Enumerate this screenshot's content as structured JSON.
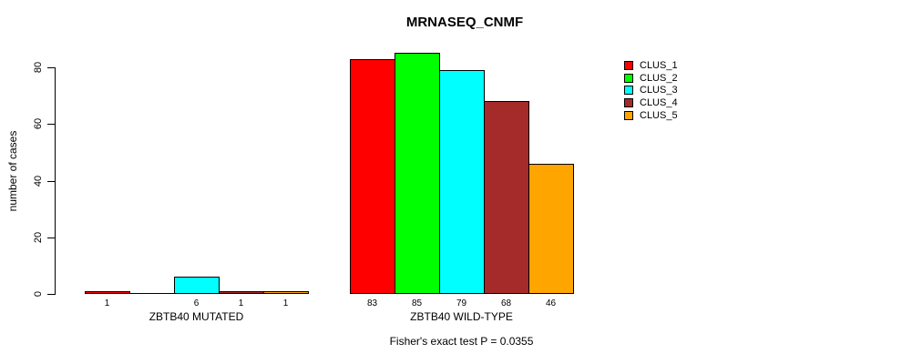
{
  "chart_data": {
    "type": "bar",
    "title": "MRNASEQ_CNMF",
    "xlabel": "",
    "ylabel": "number of cases",
    "categories": [
      "ZBTB40 MUTATED",
      "ZBTB40 WILD-TYPE"
    ],
    "series": [
      {
        "name": "CLUS_1",
        "color": "#FF0000",
        "values": [
          1,
          83
        ]
      },
      {
        "name": "CLUS_2",
        "color": "#00FF00",
        "values": [
          0,
          85
        ]
      },
      {
        "name": "CLUS_3",
        "color": "#00FFFF",
        "values": [
          6,
          79
        ]
      },
      {
        "name": "CLUS_4",
        "color": "#A52A2A",
        "values": [
          1,
          68
        ]
      },
      {
        "name": "CLUS_5",
        "color": "#FFA500",
        "values": [
          1,
          46
        ]
      }
    ],
    "ylim": [
      0,
      80
    ],
    "yticks": [
      0,
      20,
      40,
      60,
      80
    ],
    "grid": false,
    "bar_value_labels_shown": true,
    "zero_value_labels_hidden": true,
    "legend_position": "top-right",
    "annotation": "Fisher's exact test P = 0.0355"
  }
}
